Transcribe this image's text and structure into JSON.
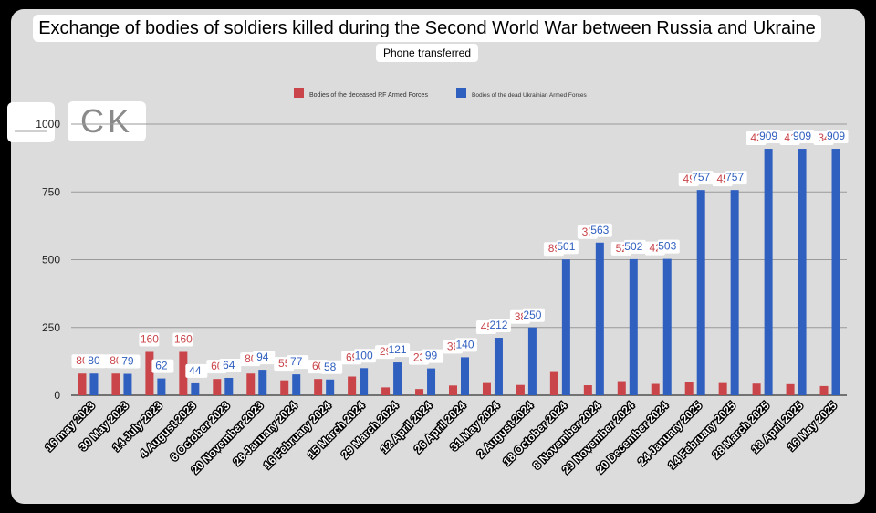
{
  "header": {
    "title": "Exchange of bodies of soldiers killed during the Second World War between Russia and Ukraine",
    "subtitle": "Phone transferred",
    "logo_text": "CK"
  },
  "colors": {
    "ru": "#c9454a",
    "ua": "#2f5fbf",
    "grid": "#9a9a9a"
  },
  "chart_data": {
    "type": "bar",
    "title": "Exchange of bodies of soldiers killed during the Second World War between Russia and Ukraine",
    "subtitle": "Phone transferred",
    "xlabel": "",
    "ylabel": "",
    "ylim": [
      0,
      1000
    ],
    "yticks": [
      "0",
      "250",
      "500",
      "750",
      "1000"
    ],
    "grid": true,
    "legend_position": "top-center",
    "categories": [
      "16 may 2023",
      "30 May 2023",
      "14 July 2023",
      "4 August 2023",
      "6 October 2023",
      "20 November 2023",
      "26 January 2024",
      "16 February 2024",
      "15 March 2024",
      "29 March 2024",
      "12 April 2024",
      "26 April 2024",
      "31 May 2024",
      "2 August 2024",
      "18 October 2024",
      "8 November 2024",
      "29 November 2024",
      "20 December 2024",
      "24 January 2025",
      "14 February 2025",
      "28 March 2025",
      "18 April 2025",
      "16 May 2025"
    ],
    "series": [
      {
        "name": "Bodies of the deceased RF Armed Forces",
        "values": [
          80,
          80,
          160,
          160,
          60,
          80,
          55,
          60,
          69,
          29,
          23,
          36,
          45,
          38,
          89,
          37,
          52,
          42,
          49,
          45,
          43,
          41,
          34
        ]
      },
      {
        "name": "Bodies of the dead Ukrainian Armed Forces",
        "values": [
          80,
          79,
          62,
          44,
          64,
          94,
          77,
          58,
          100,
          121,
          99,
          140,
          212,
          250,
          501,
          563,
          502,
          503,
          757,
          757,
          909,
          909,
          909
        ]
      }
    ]
  }
}
